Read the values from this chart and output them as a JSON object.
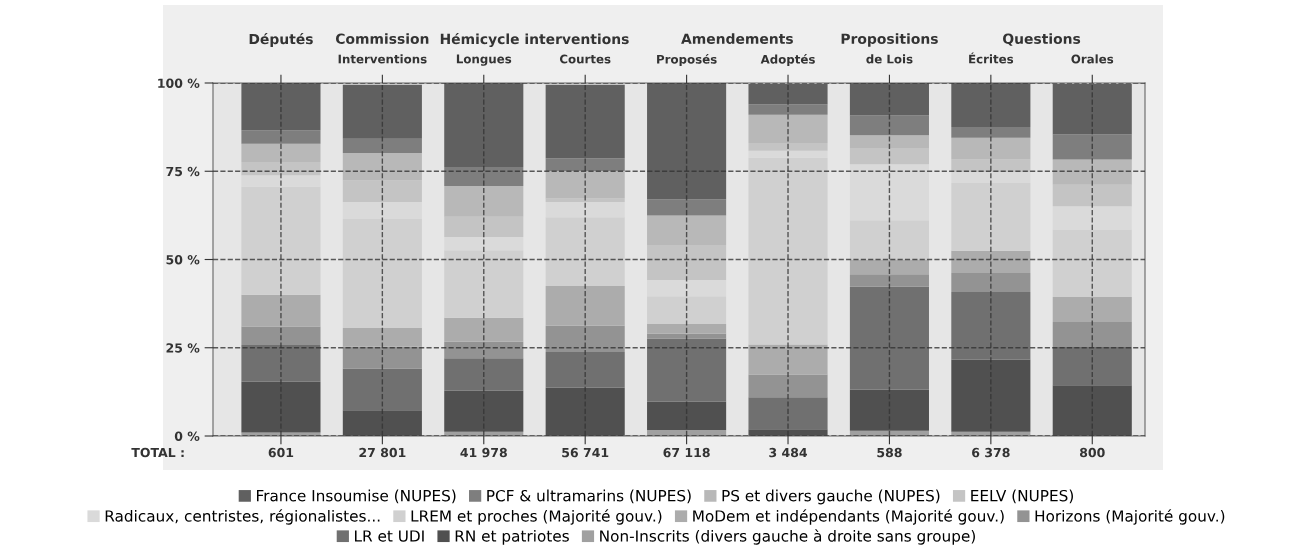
{
  "chart_data": {
    "type": "bar",
    "stacked": true,
    "categories": [
      null,
      "Interventions",
      "Longues",
      "Courtes",
      "Proposés",
      "Adoptés",
      "de Lois",
      "Écrites",
      "Orales"
    ],
    "series": [
      {
        "name": "Non-Inscrits (divers gauche à droite sans groupe)",
        "color": "#a0a0a0",
        "values": [
          1,
          null,
          1.2,
          null,
          1.7,
          null,
          1.5,
          1.2,
          null
        ]
      },
      {
        "name": "RN et patriotes",
        "color": "#505050",
        "values": [
          14.4,
          7.3,
          11.6,
          13.7,
          8,
          1.9,
          11.7,
          20.5,
          14.4
        ]
      },
      {
        "name": "LR et UDI",
        "color": "#707070",
        "values": [
          10.4,
          11.8,
          9.2,
          10.1,
          17.9,
          9.1,
          29.1,
          19.1,
          10.8
        ]
      },
      {
        "name": "Horizons (Majorité gouv.)",
        "color": "#939393",
        "values": [
          5.2,
          6.2,
          4.7,
          7.4,
          1.4,
          6.4,
          3.5,
          5.4,
          7.1
        ]
      },
      {
        "name": "MoDem et indépendants (Majorité gouv.)",
        "color": "#acacac",
        "values": [
          9,
          5.3,
          6.8,
          11.3,
          2.7,
          8.5,
          4.2,
          6.3,
          7.1
        ]
      },
      {
        "name": "LREM et proches (Majorité gouv.)",
        "color": "#d0d0d0",
        "values": [
          30.6,
          31,
          19.1,
          19.5,
          7.9,
          52.9,
          11.1,
          19.2,
          19.1
        ]
      },
      {
        "name": "Radicaux, centristes, régionalistes...",
        "color": "#dadada",
        "values": [
          3.3,
          4.7,
          3.8,
          4.3,
          4.6,
          2,
          15.9,
          3.1,
          6.6
        ]
      },
      {
        "name": "EELV (NUPES)",
        "color": "#c4c4c4",
        "values": [
          3.7,
          6.1,
          5.7,
          1,
          9.9,
          2.2,
          4.6,
          3.5,
          6.1
        ]
      },
      {
        "name": "PS et divers gauche (NUPES)",
        "color": "#b8b8b8",
        "values": [
          5.2,
          7.8,
          8.7,
          7.8,
          8.4,
          8,
          3.6,
          6.2,
          7.1
        ]
      },
      {
        "name": "PCF & ultramarins (NUPES)",
        "color": "#7e7e7e",
        "values": [
          3.8,
          4,
          5.4,
          3.6,
          4.6,
          3,
          5.6,
          3,
          7.1
        ]
      },
      {
        "name": "France Insoumise (NUPES)",
        "color": "#606060",
        "values": [
          13.4,
          15.3,
          23.8,
          20.8,
          32.9,
          5.7,
          9.2,
          12.5,
          14.3
        ]
      }
    ],
    "ylim": [
      0,
      100
    ],
    "yticks": [
      {
        "value": 0,
        "label": "0 %"
      },
      {
        "value": 25,
        "label": "25 %"
      },
      {
        "value": 50,
        "label": "50 %"
      },
      {
        "value": 75,
        "label": "75 %"
      },
      {
        "value": 100,
        "label": "100 %"
      }
    ],
    "grid": true,
    "line_style": "dashed",
    "legend": "bottom",
    "annotations": [
      "Députés",
      "Commission",
      "Hémicycle interventions",
      "Amendements",
      "Propositions",
      "Questions",
      "TOTAL :",
      "601",
      "27 801",
      "41 978",
      "56 741",
      "67 118",
      "3 484",
      "588",
      "6 378",
      "800"
    ]
  }
}
